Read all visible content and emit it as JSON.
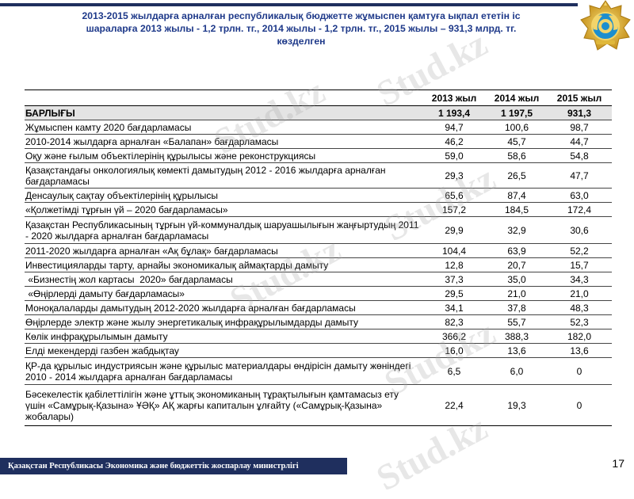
{
  "title_lines": [
    "2013-2015 жылдарға арналған республикалық бюджетте жұмыспен қамтуға ықпал ететін іс",
    "шараларға 2013 жылы - 1,2 трлн. тг.,  2014  жылы - 1,2 трлн. тг., 2015 жылы – 931,3 млрд. тг.",
    "көзделген"
  ],
  "emblem_icon": "kazakhstan-state-emblem",
  "watermark": "Stud.kz",
  "table": {
    "headers": [
      "",
      "2013 жыл",
      "2014 жыл",
      "2015 жыл"
    ],
    "total": {
      "label": "БАРЛЫҒЫ",
      "y2013": "1 193,4",
      "y2014": "1 197,5",
      "y2015": "931,3"
    },
    "rows": [
      {
        "label": "Жұмыспен камту 2020 бағдарламасы",
        "y2013": "94,7",
        "y2014": "100,6",
        "y2015": "98,7"
      },
      {
        "label": "2010-2014 жылдарға арналған «Балапан» бағдарламасы",
        "y2013": "46,2",
        "y2014": "45,7",
        "y2015": "44,7"
      },
      {
        "label": "Оқу және ғылым объектілерінің құрылысы және реконструкциясы",
        "y2013": "59,0",
        "y2014": "58,6",
        "y2015": "54,8"
      },
      {
        "label": "Қазақстандағы онкологиялық көмекті дамытудың 2012 - 2016 жылдарға арналған бағдарламасы",
        "y2013": "29,3",
        "y2014": "26,5",
        "y2015": "47,7"
      },
      {
        "label": "Денсаулық сақтау объектілерінің құрылысы",
        "y2013": "65,6",
        "y2014": "87,4",
        "y2015": "63,0"
      },
      {
        "label": "«Қолжетімді тұрғын үй – 2020 бағдарламасы»",
        "y2013": "157,2",
        "y2014": "184,5",
        "y2015": "172,4"
      },
      {
        "label": "Қазақстан Республикасының тұрғын үй-коммуналдық шаруашылығын жаңғыртудың 2011 - 2020 жылдарға арналған бағдарламасы",
        "y2013": "29,9",
        "y2014": "32,9",
        "y2015": "30,6"
      },
      {
        "label": "2011-2020  жылдарға арналған «Ақ бұлақ» бағдарламасы",
        "y2013": "104,4",
        "y2014": "63,9",
        "y2015": "52,2"
      },
      {
        "label": "Инвестицияларды тарту, арнайы экономикалық аймақтарды дамыту",
        "y2013": "12,8",
        "y2014": "20,7",
        "y2015": "15,7"
      },
      {
        "label": " «Бизнестің жол картасы  2020» бағдарламасы",
        "y2013": "37,3",
        "y2014": "35,0",
        "y2015": "34,3"
      },
      {
        "label": " «Өңірлерді дамыту бағдарламасы»",
        "y2013": "29,5",
        "y2014": "21,0",
        "y2015": "21,0"
      },
      {
        "label": "Моноқалаларды дамытудың 2012-2020 жылдарға арналған бағдарламасы",
        "y2013": "34,1",
        "y2014": "37,8",
        "y2015": "48,3"
      },
      {
        "label": "Өңірлерде электр және жылу энергетикалық инфрақұрылымдарды дамыту",
        "y2013": "82,3",
        "y2014": "55,7",
        "y2015": "52,3"
      },
      {
        "label": "Көлік инфрақұрылымын дамыту",
        "y2013": "366,2",
        "y2014": "388,3",
        "y2015": "182,0"
      },
      {
        "label": "Елді мекендерді газбен жабдықтау",
        "y2013": "16,0",
        "y2014": "13,6",
        "y2015": "13,6"
      },
      {
        "label": "ҚР-да құрылыс индустриясын және құрылыс материалдары өндірісін дамыту жөніндегі 2010 - 2014 жылдарға арналған бағдарламасы",
        "y2013": "6,5",
        "y2014": "6,0",
        "y2015": "0"
      },
      {
        "label": "Бәсекелестік қабілеттілігін және ұттық экономиканың тұрақтылығын қамтамасыз ету үшін «Самұрық-Қазына» ҰӘҚ» АҚ жарғы капиталын ұлғайту («Самұрық-Қазына» жобалары)",
        "y2013": "22,4",
        "y2014": "19,3",
        "y2015": "0"
      }
    ]
  },
  "footer": {
    "ministry": "Қазақстан Республикасы Экономика және бюджеттік жоспарлау министрлігі",
    "page_number": "17"
  },
  "colors": {
    "navy": "#1f2f5e",
    "title_blue": "#1f3a8a",
    "total_row_bg": "#e4e4e4",
    "emblem_gold": "#e0b83a",
    "emblem_blue": "#1c8ecf"
  }
}
